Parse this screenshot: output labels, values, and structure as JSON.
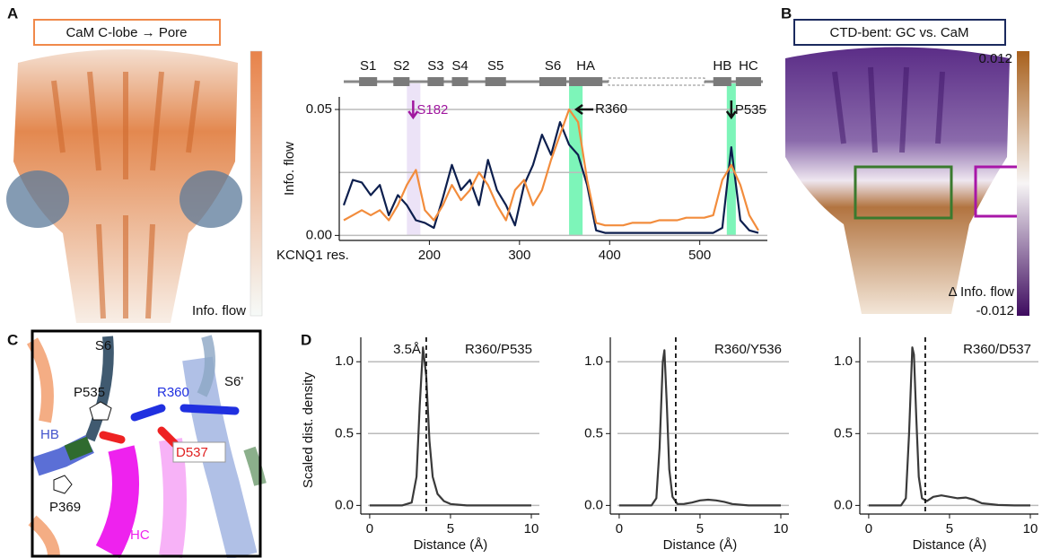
{
  "panels": {
    "A": {
      "letter": "A",
      "box_title": "CaM C-lobe → Pore",
      "colorbar_label": "Info. flow"
    },
    "B": {
      "letter": "B",
      "box_title": "CTD-bent: GC vs. CaM",
      "colorbar": {
        "max": 0.012,
        "min": -0.012,
        "label": "Δ Info. flow"
      }
    },
    "C": {
      "letter": "C",
      "labels": [
        "S6",
        "S6'",
        "P535",
        "R360",
        "HB",
        "D537",
        "P369",
        "HC"
      ]
    },
    "D": {
      "letter": "D"
    }
  },
  "chart_data": [
    {
      "type": "line",
      "ylabel": "Info. flow",
      "xlabel": "KCNQ1 res.",
      "x": [
        105,
        115,
        125,
        135,
        145,
        155,
        165,
        175,
        185,
        195,
        205,
        215,
        225,
        235,
        245,
        255,
        265,
        275,
        285,
        295,
        305,
        315,
        325,
        335,
        345,
        355,
        365,
        375,
        385,
        395,
        405,
        415,
        425,
        435,
        445,
        455,
        465,
        475,
        485,
        495,
        505,
        515,
        525,
        535,
        545,
        555,
        565
      ],
      "series": [
        {
          "color": "#0d1f4e",
          "values": [
            0.012,
            0.022,
            0.021,
            0.016,
            0.02,
            0.008,
            0.016,
            0.012,
            0.006,
            0.005,
            0.003,
            0.015,
            0.028,
            0.018,
            0.022,
            0.012,
            0.03,
            0.018,
            0.012,
            0.004,
            0.02,
            0.028,
            0.04,
            0.032,
            0.045,
            0.036,
            0.032,
            0.02,
            0.002,
            0.001,
            0.001,
            0.001,
            0.001,
            0.001,
            0.001,
            0.001,
            0.001,
            0.001,
            0.001,
            0.001,
            0.001,
            0.001,
            0.003,
            0.035,
            0.006,
            0.002,
            0.001
          ]
        },
        {
          "color": "#f28c3c",
          "values": [
            0.006,
            0.008,
            0.01,
            0.008,
            0.01,
            0.006,
            0.012,
            0.02,
            0.026,
            0.01,
            0.006,
            0.012,
            0.02,
            0.014,
            0.018,
            0.025,
            0.02,
            0.012,
            0.006,
            0.018,
            0.022,
            0.012,
            0.018,
            0.03,
            0.04,
            0.05,
            0.045,
            0.022,
            0.005,
            0.004,
            0.004,
            0.004,
            0.005,
            0.005,
            0.005,
            0.006,
            0.006,
            0.006,
            0.007,
            0.007,
            0.007,
            0.008,
            0.022,
            0.028,
            0.02,
            0.008,
            0.002
          ]
        }
      ],
      "xlim": [
        100,
        575
      ],
      "ylim": [
        -0.002,
        0.055
      ],
      "xticks": [
        200,
        300,
        400,
        500
      ],
      "yticks": [
        {
          "value": 0,
          "label": "0.00"
        },
        {
          "value": 0.05,
          "label": "0.05"
        }
      ],
      "ygrid": [
        0,
        0.025,
        0.05
      ],
      "highlights": [
        {
          "from": 175,
          "to": 190,
          "color": "#e7dcf5"
        },
        {
          "from": 355,
          "to": 370,
          "color": "#5cf2a8"
        },
        {
          "from": 530,
          "to": 540,
          "color": "#5cf2a8"
        }
      ],
      "annotations": [
        {
          "text": "S182",
          "x": 182,
          "color": "#a0179f",
          "direction": "down"
        },
        {
          "text": "R360",
          "x": 362,
          "color": "#111111",
          "direction": "left"
        },
        {
          "text": "P535",
          "x": 535,
          "color": "#111111",
          "direction": "down"
        }
      ],
      "domains": [
        {
          "label": "S1",
          "start": 122,
          "end": 142
        },
        {
          "label": "S2",
          "start": 160,
          "end": 178
        },
        {
          "label": "S3",
          "start": 198,
          "end": 216
        },
        {
          "label": "S4",
          "start": 225,
          "end": 243
        },
        {
          "label": "S5",
          "start": 262,
          "end": 285
        },
        {
          "label": "S6",
          "start": 322,
          "end": 352
        },
        {
          "label": "HA",
          "start": 355,
          "end": 392
        },
        {
          "label": "HB",
          "start": 515,
          "end": 535
        },
        {
          "label": "HC",
          "start": 540,
          "end": 568
        }
      ]
    },
    {
      "type": "line",
      "title": "R360/P535",
      "ylabel": "Scaled dist. density",
      "xlabel": "Distance (Å)",
      "x": [
        0,
        1,
        2,
        2.6,
        2.9,
        3.1,
        3.3,
        3.5,
        3.7,
        3.9,
        4.2,
        4.6,
        5,
        6,
        7,
        8,
        9,
        10
      ],
      "series": [
        {
          "color": "#3a3a3a",
          "values": [
            0,
            0,
            0,
            0.02,
            0.2,
            0.7,
            1.1,
            0.9,
            0.45,
            0.2,
            0.08,
            0.03,
            0.01,
            0,
            0,
            0,
            0,
            0
          ]
        }
      ],
      "xlim": [
        -0.55,
        10.5
      ],
      "ylim": [
        -0.06,
        1.17
      ],
      "xticks": [
        0,
        5,
        10
      ],
      "yticks": [
        {
          "value": 0,
          "label": "0.0"
        },
        {
          "value": 0.5,
          "label": "0.5"
        },
        {
          "value": 1,
          "label": "1.0"
        }
      ],
      "grid": true,
      "vline": 3.5,
      "vline_label": "3.5Å"
    },
    {
      "type": "line",
      "title": "R360/Y536",
      "xlabel": "Distance (Å)",
      "x": [
        0,
        1,
        2,
        2.3,
        2.5,
        2.7,
        2.8,
        2.95,
        3.1,
        3.3,
        3.6,
        4,
        4.5,
        5,
        5.5,
        6,
        6.5,
        7,
        8,
        9,
        10
      ],
      "series": [
        {
          "color": "#3a3a3a",
          "values": [
            0,
            0,
            0,
            0.05,
            0.4,
            1.0,
            1.08,
            0.7,
            0.25,
            0.06,
            0.01,
            0.01,
            0.02,
            0.035,
            0.04,
            0.035,
            0.025,
            0.01,
            0,
            0,
            0
          ]
        }
      ],
      "xlim": [
        -0.55,
        10.5
      ],
      "ylim": [
        -0.06,
        1.17
      ],
      "xticks": [
        0,
        5,
        10
      ],
      "yticks": [
        {
          "value": 0,
          "label": "0.0"
        },
        {
          "value": 0.5,
          "label": "0.5"
        },
        {
          "value": 1,
          "label": "1.0"
        }
      ],
      "grid": true,
      "vline": 3.5
    },
    {
      "type": "line",
      "title": "R360/D537",
      "xlabel": "Distance (Å)",
      "x": [
        0,
        1,
        2,
        2.3,
        2.5,
        2.7,
        2.8,
        2.95,
        3.1,
        3.3,
        3.6,
        4,
        4.5,
        5,
        5.5,
        6,
        6.5,
        7,
        8,
        9,
        10
      ],
      "series": [
        {
          "color": "#3a3a3a",
          "values": [
            0,
            0,
            0,
            0.05,
            0.5,
            1.1,
            1.05,
            0.6,
            0.2,
            0.05,
            0.03,
            0.06,
            0.07,
            0.06,
            0.05,
            0.055,
            0.04,
            0.015,
            0.003,
            0,
            0
          ]
        }
      ],
      "xlim": [
        -0.55,
        10.5
      ],
      "ylim": [
        -0.06,
        1.17
      ],
      "xticks": [
        0,
        5,
        10
      ],
      "yticks": [
        {
          "value": 0,
          "label": "0.0"
        },
        {
          "value": 0.5,
          "label": "0.5"
        },
        {
          "value": 1,
          "label": "1.0"
        }
      ],
      "grid": true,
      "vline": 3.5
    }
  ]
}
